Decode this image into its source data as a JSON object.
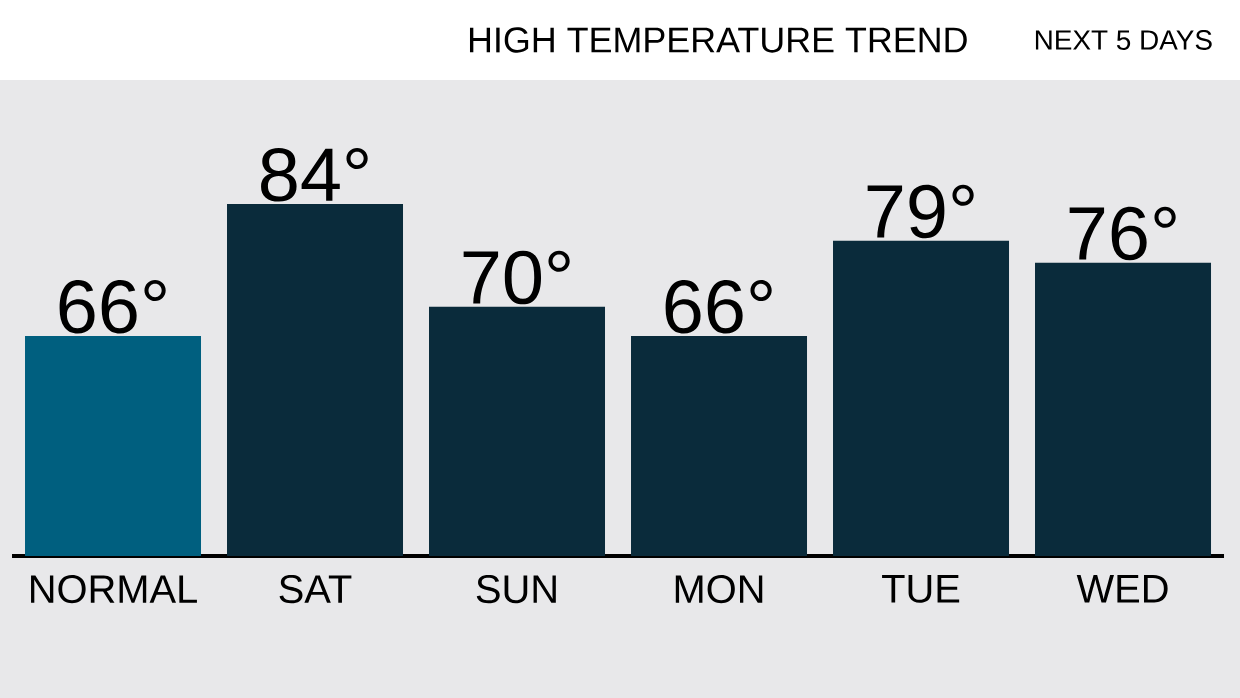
{
  "chart_data": {
    "type": "bar",
    "title": "HIGH TEMPERATURE TREND",
    "subtitle": "NEXT 5 DAYS",
    "categories": [
      "NORMAL",
      "SAT",
      "SUN",
      "MON",
      "TUE",
      "WED"
    ],
    "values": [
      66,
      84,
      70,
      66,
      79,
      76
    ],
    "value_labels": [
      "66°",
      "84°",
      "70°",
      "66°",
      "79°",
      "76°"
    ],
    "colors": [
      "#005f7f",
      "#0a2b3b",
      "#0a2b3b",
      "#0a2b3b",
      "#0a2b3b",
      "#0a2b3b"
    ],
    "ylim": [
      36,
      84
    ]
  }
}
